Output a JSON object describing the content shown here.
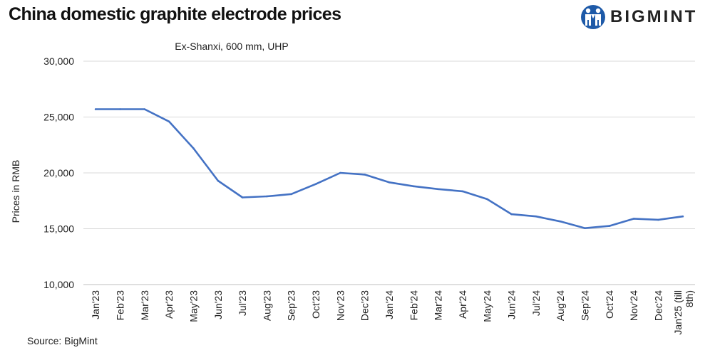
{
  "header": {
    "title": "China domestic graphite electrode prices",
    "logo_text": "BIGMINT"
  },
  "footer": {
    "source": "Source: BigMint"
  },
  "colors": {
    "series": "#4472c4",
    "brand": "#1e5aa8",
    "grid": "#d9d9d9"
  },
  "chart_data": {
    "type": "line",
    "title": "",
    "subtitle": "Ex-Shanxi, 600 mm, UHP",
    "xlabel": "",
    "ylabel": "Prices in RMB",
    "ylim": [
      10000,
      30000
    ],
    "yticks": [
      10000,
      15000,
      20000,
      25000,
      30000
    ],
    "ytick_labels": [
      "10,000",
      "15,000",
      "20,000",
      "25,000",
      "30,000"
    ],
    "grid": true,
    "legend": "none",
    "categories": [
      "Jan'23",
      "Feb'23",
      "Mar'23",
      "Apr'23",
      "May'23",
      "Jun'23",
      "Jul'23",
      "Aug'23",
      "Sep'23",
      "Oct'23",
      "Nov'23",
      "Dec'23",
      "Jan'24",
      "Feb'24",
      "Mar'24",
      "Apr'24",
      "May'24",
      "Jun'24",
      "Jul'24",
      "Aug'24",
      "Sep'24",
      "Oct'24",
      "Nov'24",
      "Dec'24",
      "Jan'25 (till 8th)"
    ],
    "series": [
      {
        "name": "Ex-Shanxi, 600 mm, UHP",
        "values": [
          25700,
          25700,
          25700,
          24600,
          22200,
          19300,
          17800,
          17900,
          18100,
          19000,
          20000,
          19850,
          19150,
          18800,
          18550,
          18350,
          17650,
          16300,
          16100,
          15650,
          15050,
          15250,
          15900,
          15800,
          16100
        ]
      }
    ]
  }
}
